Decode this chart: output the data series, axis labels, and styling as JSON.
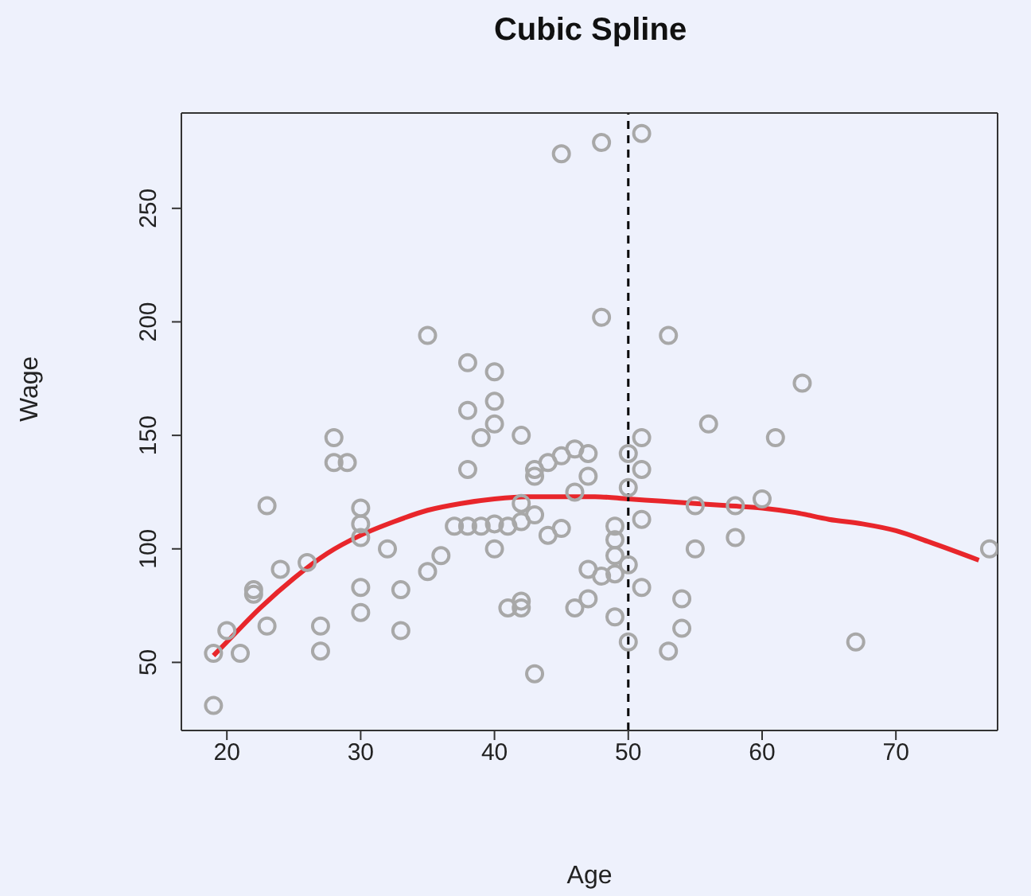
{
  "chart_data": {
    "type": "scatter",
    "title": "Cubic Spline",
    "xlabel": "Age",
    "ylabel": "Wage",
    "xlim": [
      16.6,
      77.6
    ],
    "xticks": [
      20,
      30,
      40,
      50,
      60,
      70
    ],
    "ylim": [
      20,
      292
    ],
    "yticks": [
      50,
      100,
      150,
      200,
      250
    ],
    "marker": "circle",
    "series": [
      {
        "color": "#a8a8a8",
        "x": [
          19,
          19,
          20,
          21,
          22,
          22,
          23,
          23,
          24,
          26,
          27,
          27,
          28,
          28,
          29,
          30,
          30,
          30,
          30,
          30,
          32,
          33,
          33,
          35,
          35,
          36,
          37,
          38,
          39,
          38,
          38,
          38,
          39,
          40,
          40,
          40,
          40,
          40,
          41,
          41,
          42,
          42,
          42,
          42,
          42,
          43,
          43,
          43,
          43,
          44,
          44,
          45,
          45,
          45,
          46,
          46,
          46,
          47,
          47,
          47,
          47,
          48,
          48,
          48,
          49,
          49,
          49,
          49,
          49,
          50,
          50,
          50,
          50,
          51,
          51,
          51,
          51,
          51,
          53,
          53,
          54,
          54,
          55,
          55,
          56,
          58,
          58,
          60,
          61,
          63,
          67,
          77
        ],
        "values": [
          31,
          54,
          64,
          54,
          80,
          82,
          119,
          66,
          91,
          94,
          66,
          55,
          149,
          138,
          138,
          118,
          111,
          105,
          83,
          72,
          100,
          82,
          64,
          90,
          194,
          97,
          110,
          110,
          110,
          182,
          161,
          135,
          149,
          178,
          165,
          155,
          111,
          100,
          110,
          74,
          77,
          74,
          150,
          112,
          120,
          135,
          132,
          45,
          115,
          106,
          138,
          274,
          141,
          109,
          144,
          74,
          125,
          142,
          132,
          91,
          78,
          279,
          202,
          88,
          70,
          89,
          104,
          110,
          97,
          142,
          93,
          59,
          127,
          283,
          149,
          135,
          113,
          83,
          194,
          55,
          78,
          65,
          100,
          119,
          155,
          119,
          105,
          122,
          149,
          173,
          59,
          100
        ]
      },
      {
        "type": "line",
        "color": "#e8262b",
        "line_style": "solid",
        "marker": "none",
        "x": [
          19,
          20,
          22.5,
          25,
          27.5,
          30,
          32.5,
          35,
          37.5,
          40,
          42.5,
          45,
          47.5,
          50,
          52.5,
          55,
          57.5,
          60,
          62.5,
          65,
          67.5,
          70,
          72.5,
          76.2
        ],
        "values": [
          53,
          59,
          74,
          87,
          98,
          106,
          112,
          117,
          120,
          122,
          123,
          123,
          123,
          122,
          121,
          120,
          119,
          118,
          116,
          113,
          111,
          108,
          103,
          95
        ]
      }
    ],
    "ref_lines": [
      {
        "axis": "x",
        "value": 50,
        "color": "#000000",
        "line_style": "dashed"
      }
    ]
  }
}
